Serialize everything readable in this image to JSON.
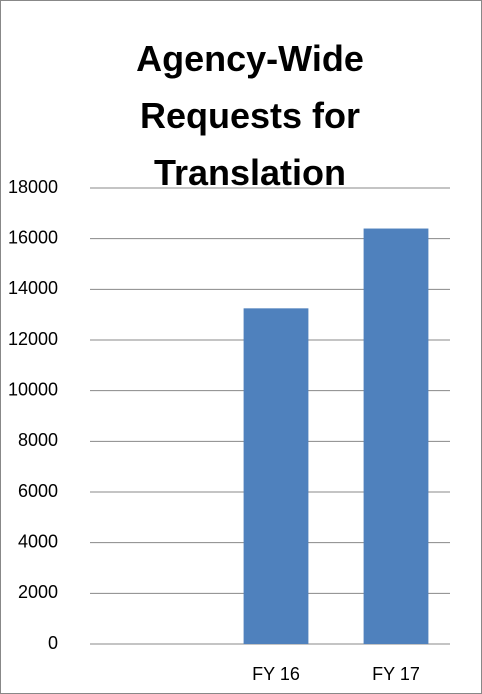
{
  "chart_data": {
    "type": "bar",
    "title": "Agency-Wide Requests for Translation",
    "categories": [
      null,
      "FY 16",
      "FY 17"
    ],
    "values": [
      null,
      13250,
      16400
    ],
    "color": "#4f81bd",
    "ylim": [
      0,
      18000
    ],
    "yticks": [
      0,
      2000,
      4000,
      6000,
      8000,
      10000,
      12000,
      14000,
      16000,
      18000
    ],
    "grid": true
  }
}
